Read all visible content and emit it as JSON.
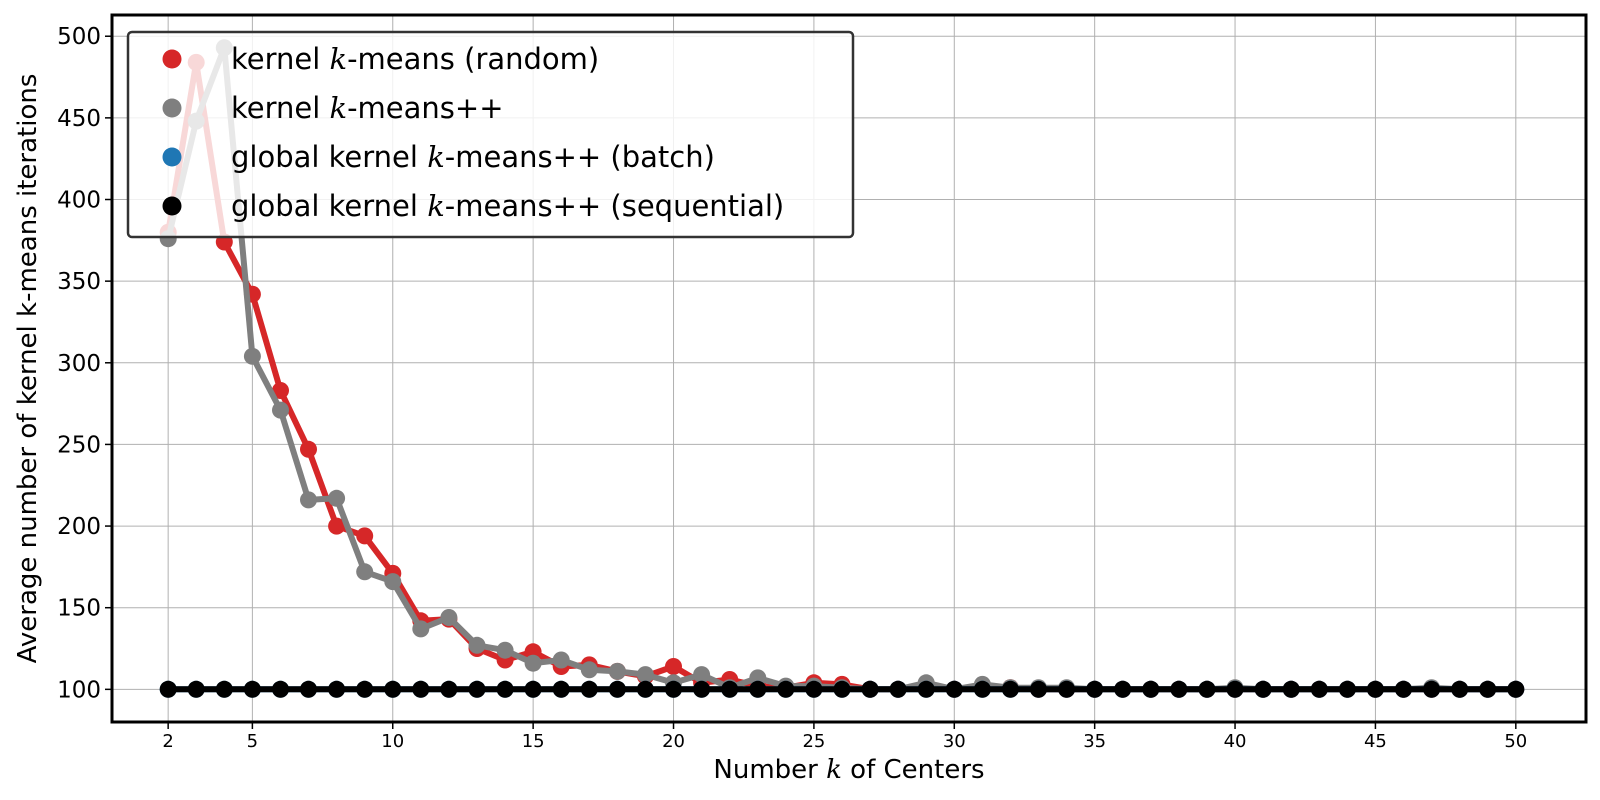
{
  "chart_data": {
    "type": "line",
    "xlabel": {
      "before": "Number ",
      "var": "k",
      "after": " of Centers"
    },
    "ylabel": "Average number of kernel k-means iterations",
    "xlim": [
      0,
      52.5
    ],
    "ylim": [
      80,
      513
    ],
    "x_ticks": [
      2,
      5,
      10,
      15,
      20,
      25,
      30,
      35,
      40,
      45,
      50
    ],
    "y_ticks": [
      100,
      150,
      200,
      250,
      300,
      350,
      400,
      450,
      500
    ],
    "grid": true,
    "legend_position": "top-left",
    "x": [
      2,
      3,
      4,
      5,
      6,
      7,
      8,
      9,
      10,
      11,
      12,
      13,
      14,
      15,
      16,
      17,
      18,
      19,
      20,
      21,
      22,
      23,
      24,
      25,
      26,
      27,
      28,
      29,
      30,
      31,
      32,
      33,
      34,
      35,
      36,
      37,
      38,
      39,
      40,
      41,
      42,
      43,
      44,
      45,
      46,
      47,
      48,
      49,
      50
    ],
    "series": [
      {
        "name": "kernel k-means (random)",
        "legend": {
          "before": "kernel ",
          "var": "k",
          "after": "-means (random)"
        },
        "color": "#d62728",
        "values": [
          380,
          484,
          374,
          342,
          283,
          247,
          200,
          194,
          171,
          142,
          143,
          125,
          118,
          123,
          114,
          115,
          111,
          108,
          114,
          104,
          106,
          102,
          101,
          104,
          103,
          100,
          100,
          101,
          100,
          101,
          101,
          100,
          100,
          100,
          100,
          100,
          100,
          100,
          100,
          100,
          100,
          100,
          100,
          100,
          100,
          100,
          100,
          100,
          100
        ]
      },
      {
        "name": "kernel k-means++",
        "legend": {
          "before": "kernel ",
          "var": "k",
          "after": "-means++"
        },
        "color": "#7f7f7f",
        "values": [
          376,
          448,
          493,
          304,
          271,
          216,
          217,
          172,
          166,
          137,
          144,
          127,
          124,
          116,
          118,
          112,
          111,
          109,
          104,
          109,
          101,
          107,
          102,
          102,
          101,
          100,
          100,
          104,
          100,
          103,
          101,
          101,
          101,
          100,
          100,
          100,
          100,
          100,
          101,
          100,
          100,
          100,
          100,
          100,
          100,
          101,
          100,
          100,
          100
        ]
      },
      {
        "name": "global kernel k-means++ (batch)",
        "legend": {
          "before": "global kernel ",
          "var": "k",
          "after": "-means++ (batch)"
        },
        "color": "#1f77b4",
        "values": [
          100,
          100,
          100,
          100,
          100,
          100,
          100,
          100,
          100,
          100,
          100,
          100,
          100,
          100,
          100,
          100,
          100,
          100,
          100,
          100,
          100,
          100,
          100,
          100,
          100,
          100,
          100,
          100,
          100,
          100,
          100,
          100,
          100,
          100,
          100,
          100,
          100,
          100,
          100,
          100,
          100,
          100,
          100,
          100,
          100,
          100,
          100,
          100,
          100
        ]
      },
      {
        "name": "global kernel k-means++ (sequential)",
        "legend": {
          "before": "global kernel ",
          "var": "k",
          "after": "-means++ (sequential)"
        },
        "color": "#000000",
        "values": [
          100,
          100,
          100,
          100,
          100,
          100,
          100,
          100,
          100,
          100,
          100,
          100,
          100,
          100,
          100,
          100,
          100,
          100,
          100,
          100,
          100,
          100,
          100,
          100,
          100,
          100,
          100,
          100,
          100,
          100,
          100,
          100,
          100,
          100,
          100,
          100,
          100,
          100,
          100,
          100,
          100,
          100,
          100,
          100,
          100,
          100,
          100,
          100,
          100
        ]
      }
    ]
  }
}
